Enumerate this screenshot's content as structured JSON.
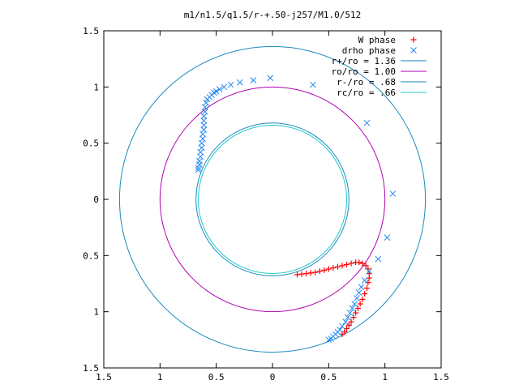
{
  "chart_data": {
    "type": "scatter",
    "title": "m1/n1.5/q1.5/r-+.50-j257/M1.0/512",
    "xlim": [
      -1.5,
      1.5
    ],
    "ylim": [
      -1.5,
      1.5
    ],
    "xticks": [
      -1.5,
      -1,
      -0.5,
      0,
      0.5,
      1,
      1.5
    ],
    "yticks": [
      -1.5,
      -1,
      -0.5,
      0,
      0.5,
      1,
      1.5
    ],
    "xtick_labels": [
      "1.5",
      "1",
      "0.5",
      "0",
      "0.5",
      "1",
      "1.5"
    ],
    "ytick_labels": [
      "1.5",
      "1",
      "0.5",
      "0",
      "0.5",
      "1",
      "1.5"
    ],
    "grid": false,
    "legend_position": "top-right",
    "legend": [
      {
        "label": "W phase",
        "marker": "plus",
        "color": "#ff0000"
      },
      {
        "label": "drho phase",
        "marker": "x",
        "color": "#2288ee"
      },
      {
        "label": "r+/ro = 1.36",
        "marker": "line",
        "color": "#1a8ac0"
      },
      {
        "label": "ro/ro = 1.00",
        "marker": "line",
        "color": "#b000b0"
      },
      {
        "label": "r-/ro = .68",
        "marker": "line",
        "color": "#1a8ac0"
      },
      {
        "label": "rc/ro = .66",
        "marker": "line",
        "color": "#22c8c8"
      }
    ],
    "circles": [
      {
        "name": "r+/ro = 1.36",
        "radius": 1.36,
        "color": "#1a8ac0"
      },
      {
        "name": "ro/ro = 1.00",
        "radius": 1.0,
        "color": "#b000b0"
      },
      {
        "name": "r-/ro = .68",
        "radius": 0.68,
        "color": "#1a8ac0"
      },
      {
        "name": "rc/ro = .66",
        "radius": 0.66,
        "color": "#22c8c8"
      }
    ],
    "series": [
      {
        "name": "W phase",
        "marker": "plus",
        "color": "#ff0000",
        "points": [
          [
            0.62,
            -1.2
          ],
          [
            0.64,
            -1.18
          ],
          [
            0.66,
            -1.15
          ],
          [
            0.68,
            -1.12
          ],
          [
            0.7,
            -1.09
          ],
          [
            0.72,
            -1.05
          ],
          [
            0.74,
            -1.01
          ],
          [
            0.76,
            -0.97
          ],
          [
            0.78,
            -0.93
          ],
          [
            0.8,
            -0.89
          ],
          [
            0.82,
            -0.84
          ],
          [
            0.84,
            -0.79
          ],
          [
            0.85,
            -0.74
          ],
          [
            0.86,
            -0.7
          ],
          [
            0.86,
            -0.66
          ],
          [
            0.85,
            -0.62
          ],
          [
            0.83,
            -0.59
          ],
          [
            0.8,
            -0.57
          ],
          [
            0.77,
            -0.56
          ],
          [
            0.74,
            -0.56
          ],
          [
            0.7,
            -0.57
          ],
          [
            0.66,
            -0.58
          ],
          [
            0.62,
            -0.59
          ],
          [
            0.58,
            -0.6
          ],
          [
            0.54,
            -0.61
          ],
          [
            0.5,
            -0.62
          ],
          [
            0.46,
            -0.63
          ],
          [
            0.42,
            -0.64
          ],
          [
            0.38,
            -0.65
          ],
          [
            0.34,
            -0.655
          ],
          [
            0.3,
            -0.66
          ],
          [
            0.26,
            -0.665
          ],
          [
            0.22,
            -0.67
          ]
        ]
      },
      {
        "name": "drho phase",
        "marker": "x",
        "color": "#2288ee",
        "points": [
          [
            -0.66,
            0.26
          ],
          [
            -0.66,
            0.28
          ],
          [
            -0.65,
            0.31
          ],
          [
            -0.65,
            0.34
          ],
          [
            -0.64,
            0.38
          ],
          [
            -0.64,
            0.42
          ],
          [
            -0.63,
            0.46
          ],
          [
            -0.63,
            0.5
          ],
          [
            -0.62,
            0.54
          ],
          [
            -0.62,
            0.58
          ],
          [
            -0.61,
            0.62
          ],
          [
            -0.61,
            0.66
          ],
          [
            -0.61,
            0.7
          ],
          [
            -0.61,
            0.74
          ],
          [
            -0.6,
            0.78
          ],
          [
            -0.6,
            0.82
          ],
          [
            -0.59,
            0.86
          ],
          [
            -0.58,
            0.89
          ],
          [
            -0.56,
            0.91
          ],
          [
            -0.54,
            0.93
          ],
          [
            -0.52,
            0.95
          ],
          [
            -0.5,
            0.96
          ],
          [
            -0.47,
            0.98
          ],
          [
            -0.43,
            1.0
          ],
          [
            -0.37,
            1.02
          ],
          [
            -0.29,
            1.04
          ],
          [
            -0.17,
            1.06
          ],
          [
            -0.02,
            1.08
          ],
          [
            0.36,
            1.02
          ],
          [
            0.84,
            0.68
          ],
          [
            1.07,
            0.05
          ],
          [
            1.02,
            -0.34
          ],
          [
            0.94,
            -0.53
          ],
          [
            0.86,
            -0.64
          ],
          [
            0.82,
            -0.72
          ],
          [
            0.79,
            -0.78
          ],
          [
            0.77,
            -0.83
          ],
          [
            0.75,
            -0.88
          ],
          [
            0.73,
            -0.93
          ],
          [
            0.71,
            -0.97
          ],
          [
            0.69,
            -1.01
          ],
          [
            0.67,
            -1.05
          ],
          [
            0.65,
            -1.09
          ],
          [
            0.62,
            -1.13
          ],
          [
            0.6,
            -1.16
          ],
          [
            0.58,
            -1.18
          ],
          [
            0.56,
            -1.2
          ],
          [
            0.54,
            -1.22
          ],
          [
            0.52,
            -1.24
          ],
          [
            0.5,
            -1.25
          ]
        ]
      }
    ]
  }
}
